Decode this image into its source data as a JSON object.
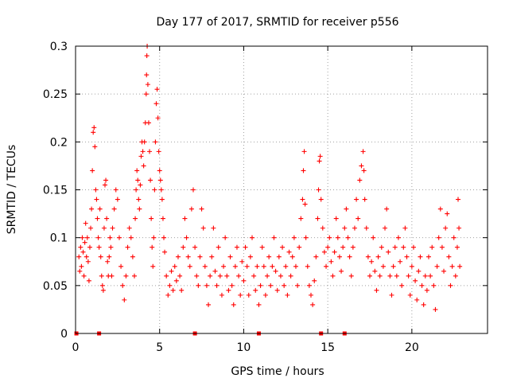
{
  "chart_data": {
    "type": "scatter",
    "title": "Day 177 of 2017, SRMTID for receiver p556",
    "xlabel": "GPS time / hours",
    "ylabel": "SRMTID / TECUs",
    "xlim": [
      0,
      24.5
    ],
    "ylim": [
      0,
      0.3
    ],
    "x_ticks": [
      0,
      5,
      10,
      15,
      20
    ],
    "x_tick_labels": [
      "0",
      "5",
      "10",
      "15",
      "20"
    ],
    "y_ticks": [
      0,
      0.05,
      0.1,
      0.15,
      0.2,
      0.25,
      0.3
    ],
    "y_tick_labels": [
      "0",
      "0.05",
      "0.1",
      "0.15",
      "0.2",
      "0.25",
      "0.3"
    ],
    "grid": true,
    "marker": "plus",
    "color": "#ff0000",
    "zero_markers_x": [
      0.05,
      1.4,
      7.1,
      10.9,
      14.6,
      16.0
    ],
    "series": [
      {
        "name": "SRMTID",
        "points": [
          [
            0.2,
            0.08
          ],
          [
            0.25,
            0.065
          ],
          [
            0.3,
            0.09
          ],
          [
            0.35,
            0.07
          ],
          [
            0.4,
            0.1
          ],
          [
            0.45,
            0.085
          ],
          [
            0.5,
            0.06
          ],
          [
            0.55,
            0.095
          ],
          [
            0.6,
            0.115
          ],
          [
            0.65,
            0.08
          ],
          [
            0.7,
            0.1
          ],
          [
            0.75,
            0.075
          ],
          [
            0.8,
            0.055
          ],
          [
            0.85,
            0.09
          ],
          [
            0.9,
            0.11
          ],
          [
            0.95,
            0.13
          ],
          [
            1.0,
            0.17
          ],
          [
            1.05,
            0.21
          ],
          [
            1.1,
            0.215
          ],
          [
            1.15,
            0.195
          ],
          [
            1.2,
            0.15
          ],
          [
            1.25,
            0.14
          ],
          [
            1.3,
            0.12
          ],
          [
            1.35,
            0.1
          ],
          [
            1.4,
            0.09
          ],
          [
            1.45,
            0.13
          ],
          [
            1.5,
            0.08
          ],
          [
            1.55,
            0.06
          ],
          [
            1.6,
            0.05
          ],
          [
            1.65,
            0.045
          ],
          [
            1.7,
            0.11
          ],
          [
            1.75,
            0.155
          ],
          [
            1.8,
            0.16
          ],
          [
            1.85,
            0.12
          ],
          [
            1.9,
            0.075
          ],
          [
            1.95,
            0.06
          ],
          [
            2.0,
            0.08
          ],
          [
            2.05,
            0.1
          ],
          [
            2.1,
            0.09
          ],
          [
            2.15,
            0.06
          ],
          [
            2.2,
            0.11
          ],
          [
            2.3,
            0.13
          ],
          [
            2.4,
            0.15
          ],
          [
            2.5,
            0.14
          ],
          [
            2.6,
            0.1
          ],
          [
            2.7,
            0.07
          ],
          [
            2.8,
            0.05
          ],
          [
            2.9,
            0.035
          ],
          [
            3.0,
            0.06
          ],
          [
            3.1,
            0.09
          ],
          [
            3.2,
            0.11
          ],
          [
            3.3,
            0.1
          ],
          [
            3.4,
            0.08
          ],
          [
            3.5,
            0.06
          ],
          [
            3.55,
            0.12
          ],
          [
            3.6,
            0.15
          ],
          [
            3.65,
            0.17
          ],
          [
            3.7,
            0.16
          ],
          [
            3.75,
            0.14
          ],
          [
            3.8,
            0.13
          ],
          [
            3.85,
            0.155
          ],
          [
            3.9,
            0.185
          ],
          [
            3.95,
            0.2
          ],
          [
            4.0,
            0.19
          ],
          [
            4.05,
            0.175
          ],
          [
            4.1,
            0.2
          ],
          [
            4.15,
            0.22
          ],
          [
            4.2,
            0.25
          ],
          [
            4.22,
            0.27
          ],
          [
            4.24,
            0.29
          ],
          [
            4.26,
            0.3
          ],
          [
            4.3,
            0.26
          ],
          [
            4.35,
            0.22
          ],
          [
            4.4,
            0.19
          ],
          [
            4.45,
            0.16
          ],
          [
            4.5,
            0.12
          ],
          [
            4.55,
            0.09
          ],
          [
            4.6,
            0.07
          ],
          [
            4.65,
            0.1
          ],
          [
            4.7,
            0.15
          ],
          [
            4.75,
            0.2
          ],
          [
            4.8,
            0.24
          ],
          [
            4.85,
            0.255
          ],
          [
            4.9,
            0.225
          ],
          [
            4.95,
            0.19
          ],
          [
            5.0,
            0.17
          ],
          [
            5.05,
            0.16
          ],
          [
            5.1,
            0.15
          ],
          [
            5.15,
            0.14
          ],
          [
            5.2,
            0.12
          ],
          [
            5.25,
            0.1
          ],
          [
            5.3,
            0.085
          ],
          [
            5.4,
            0.06
          ],
          [
            5.5,
            0.04
          ],
          [
            5.6,
            0.05
          ],
          [
            5.7,
            0.065
          ],
          [
            5.8,
            0.045
          ],
          [
            5.9,
            0.07
          ],
          [
            6.0,
            0.055
          ],
          [
            6.1,
            0.08
          ],
          [
            6.2,
            0.06
          ],
          [
            6.3,
            0.045
          ],
          [
            6.4,
            0.09
          ],
          [
            6.5,
            0.12
          ],
          [
            6.6,
            0.1
          ],
          [
            6.7,
            0.08
          ],
          [
            6.8,
            0.07
          ],
          [
            6.9,
            0.13
          ],
          [
            7.0,
            0.15
          ],
          [
            7.1,
            0.09
          ],
          [
            7.2,
            0.06
          ],
          [
            7.3,
            0.05
          ],
          [
            7.4,
            0.08
          ],
          [
            7.5,
            0.13
          ],
          [
            7.6,
            0.11
          ],
          [
            7.7,
            0.07
          ],
          [
            7.8,
            0.05
          ],
          [
            7.9,
            0.03
          ],
          [
            8.0,
            0.06
          ],
          [
            8.1,
            0.08
          ],
          [
            8.2,
            0.11
          ],
          [
            8.3,
            0.065
          ],
          [
            8.4,
            0.05
          ],
          [
            8.5,
            0.09
          ],
          [
            8.6,
            0.06
          ],
          [
            8.7,
            0.04
          ],
          [
            8.8,
            0.07
          ],
          [
            8.9,
            0.1
          ],
          [
            9.0,
            0.06
          ],
          [
            9.1,
            0.045
          ],
          [
            9.2,
            0.08
          ],
          [
            9.3,
            0.05
          ],
          [
            9.4,
            0.03
          ],
          [
            9.5,
            0.07
          ],
          [
            9.6,
            0.09
          ],
          [
            9.7,
            0.06
          ],
          [
            9.8,
            0.04
          ],
          [
            9.9,
            0.075
          ],
          [
            10.0,
            0.055
          ],
          [
            10.1,
            0.09
          ],
          [
            10.2,
            0.07
          ],
          [
            10.3,
            0.04
          ],
          [
            10.4,
            0.08
          ],
          [
            10.5,
            0.1
          ],
          [
            10.6,
            0.06
          ],
          [
            10.7,
            0.045
          ],
          [
            10.8,
            0.07
          ],
          [
            10.9,
            0.03
          ],
          [
            11.0,
            0.05
          ],
          [
            11.1,
            0.09
          ],
          [
            11.2,
            0.07
          ],
          [
            11.3,
            0.04
          ],
          [
            11.4,
            0.06
          ],
          [
            11.5,
            0.08
          ],
          [
            11.6,
            0.05
          ],
          [
            11.7,
            0.07
          ],
          [
            11.8,
            0.1
          ],
          [
            11.9,
            0.065
          ],
          [
            12.0,
            0.045
          ],
          [
            12.1,
            0.08
          ],
          [
            12.2,
            0.06
          ],
          [
            12.3,
            0.09
          ],
          [
            12.4,
            0.05
          ],
          [
            12.5,
            0.07
          ],
          [
            12.6,
            0.04
          ],
          [
            12.7,
            0.085
          ],
          [
            12.8,
            0.06
          ],
          [
            12.9,
            0.08
          ],
          [
            13.0,
            0.1
          ],
          [
            13.1,
            0.07
          ],
          [
            13.2,
            0.05
          ],
          [
            13.3,
            0.09
          ],
          [
            13.4,
            0.12
          ],
          [
            13.5,
            0.14
          ],
          [
            13.55,
            0.17
          ],
          [
            13.6,
            0.19
          ],
          [
            13.65,
            0.135
          ],
          [
            13.7,
            0.1
          ],
          [
            13.8,
            0.07
          ],
          [
            13.9,
            0.05
          ],
          [
            14.0,
            0.04
          ],
          [
            14.1,
            0.03
          ],
          [
            14.2,
            0.055
          ],
          [
            14.3,
            0.08
          ],
          [
            14.4,
            0.12
          ],
          [
            14.45,
            0.15
          ],
          [
            14.5,
            0.18
          ],
          [
            14.55,
            0.185
          ],
          [
            14.6,
            0.14
          ],
          [
            14.7,
            0.11
          ],
          [
            14.8,
            0.085
          ],
          [
            14.9,
            0.07
          ],
          [
            15.0,
            0.09
          ],
          [
            15.1,
            0.1
          ],
          [
            15.2,
            0.075
          ],
          [
            15.3,
            0.06
          ],
          [
            15.4,
            0.085
          ],
          [
            15.5,
            0.12
          ],
          [
            15.6,
            0.1
          ],
          [
            15.7,
            0.08
          ],
          [
            15.8,
            0.065
          ],
          [
            15.9,
            0.09
          ],
          [
            16.0,
            0.11
          ],
          [
            16.1,
            0.13
          ],
          [
            16.2,
            0.1
          ],
          [
            16.3,
            0.08
          ],
          [
            16.4,
            0.06
          ],
          [
            16.5,
            0.09
          ],
          [
            16.6,
            0.11
          ],
          [
            16.7,
            0.14
          ],
          [
            16.8,
            0.12
          ],
          [
            16.9,
            0.16
          ],
          [
            17.0,
            0.175
          ],
          [
            17.1,
            0.19
          ],
          [
            17.15,
            0.17
          ],
          [
            17.2,
            0.14
          ],
          [
            17.3,
            0.11
          ],
          [
            17.4,
            0.08
          ],
          [
            17.5,
            0.06
          ],
          [
            17.6,
            0.075
          ],
          [
            17.7,
            0.1
          ],
          [
            17.8,
            0.065
          ],
          [
            17.9,
            0.045
          ],
          [
            18.0,
            0.08
          ],
          [
            18.1,
            0.06
          ],
          [
            18.2,
            0.09
          ],
          [
            18.3,
            0.07
          ],
          [
            18.4,
            0.11
          ],
          [
            18.5,
            0.13
          ],
          [
            18.6,
            0.085
          ],
          [
            18.7,
            0.06
          ],
          [
            18.8,
            0.04
          ],
          [
            18.9,
            0.07
          ],
          [
            19.0,
            0.09
          ],
          [
            19.1,
            0.06
          ],
          [
            19.2,
            0.1
          ],
          [
            19.3,
            0.075
          ],
          [
            19.4,
            0.05
          ],
          [
            19.5,
            0.09
          ],
          [
            19.6,
            0.11
          ],
          [
            19.7,
            0.08
          ],
          [
            19.8,
            0.06
          ],
          [
            19.9,
            0.04
          ],
          [
            20.0,
            0.07
          ],
          [
            20.1,
            0.09
          ],
          [
            20.2,
            0.055
          ],
          [
            20.3,
            0.035
          ],
          [
            20.4,
            0.065
          ],
          [
            20.5,
            0.08
          ],
          [
            20.6,
            0.05
          ],
          [
            20.7,
            0.03
          ],
          [
            20.8,
            0.06
          ],
          [
            20.9,
            0.045
          ],
          [
            21.0,
            0.08
          ],
          [
            21.1,
            0.06
          ],
          [
            21.2,
            0.09
          ],
          [
            21.3,
            0.05
          ],
          [
            21.4,
            0.025
          ],
          [
            21.5,
            0.07
          ],
          [
            21.6,
            0.1
          ],
          [
            21.7,
            0.13
          ],
          [
            21.8,
            0.09
          ],
          [
            21.9,
            0.065
          ],
          [
            22.0,
            0.11
          ],
          [
            22.1,
            0.125
          ],
          [
            22.2,
            0.08
          ],
          [
            22.3,
            0.05
          ],
          [
            22.4,
            0.07
          ],
          [
            22.5,
            0.1
          ],
          [
            22.6,
            0.06
          ],
          [
            22.7,
            0.09
          ],
          [
            22.75,
            0.14
          ],
          [
            22.8,
            0.11
          ],
          [
            22.85,
            0.07
          ]
        ]
      }
    ]
  }
}
